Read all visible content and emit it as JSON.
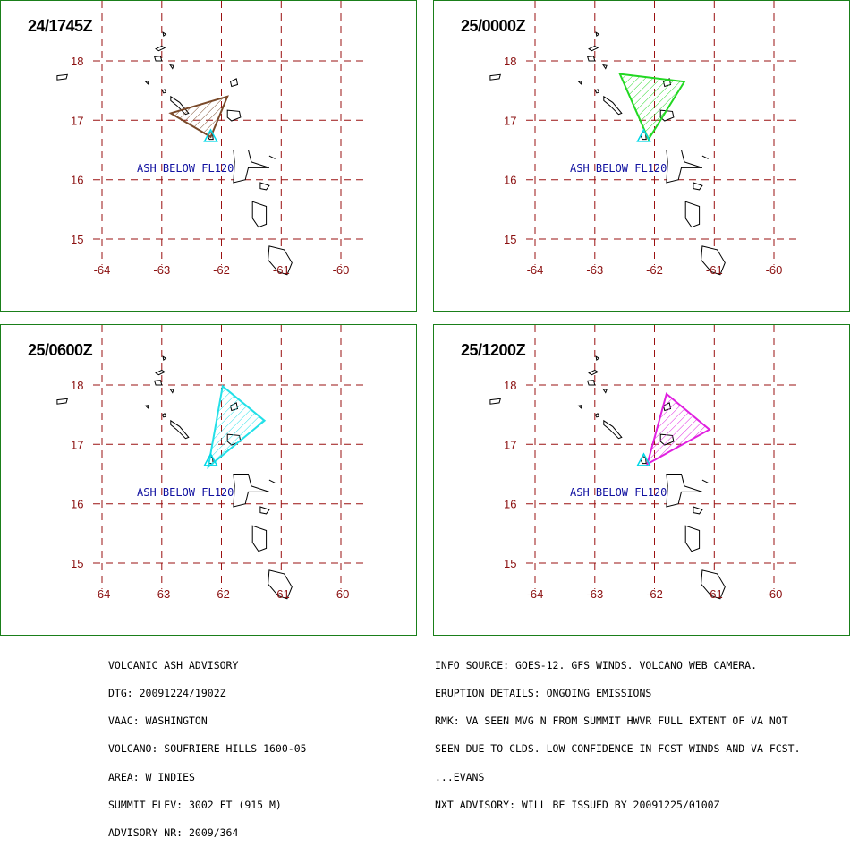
{
  "panels": [
    {
      "time": "24/1745Z",
      "color": "#7a4a2a",
      "poly": [
        [
          -62.85,
          17.12
        ],
        [
          -61.9,
          17.4
        ],
        [
          -62.18,
          16.72
        ]
      ]
    },
    {
      "time": "25/0000Z",
      "color": "#22d822",
      "poly": [
        [
          -62.58,
          17.78
        ],
        [
          -61.5,
          17.65
        ],
        [
          -62.1,
          16.68
        ]
      ]
    },
    {
      "time": "25/0600Z",
      "color": "#22e0e8",
      "poly": [
        [
          -61.98,
          17.98
        ],
        [
          -61.28,
          17.4
        ],
        [
          -62.22,
          16.62
        ]
      ]
    },
    {
      "time": "25/1200Z",
      "color": "#e020e0",
      "poly": [
        [
          -61.8,
          17.85
        ],
        [
          -61.08,
          17.25
        ],
        [
          -62.12,
          16.67
        ]
      ]
    }
  ],
  "map": {
    "lat_labels": [
      "18",
      "17",
      "16",
      "15"
    ],
    "lon_labels": [
      "-64",
      "-63",
      "-62",
      "-61",
      "-60"
    ],
    "lat_values": [
      18,
      17,
      16,
      15
    ],
    "lon_values": [
      -64,
      -63,
      -62,
      -61,
      -60
    ],
    "annotation": "ASH BELOW FL120",
    "volcano": {
      "lon": -62.18,
      "lat": 16.72
    },
    "grid_color": "#9a1010",
    "label_color": "#8b1010",
    "annotation_color": "#1010a0"
  },
  "advisory_left": [
    "VOLCANIC ASH ADVISORY",
    "DTG: 20091224/1902Z",
    "VAAC: WASHINGTON",
    "VOLCANO: SOUFRIERE HILLS 1600-05",
    "AREA: W_INDIES",
    "SUMMIT ELEV: 3002 FT (915 M)",
    "ADVISORY NR: 2009/364"
  ],
  "advisory_right": [
    "INFO SOURCE: GOES-12. GFS WINDS. VOLCANO WEB CAMERA.",
    "ERUPTION DETAILS: ONGOING EMISSIONS",
    "RMK: VA SEEN MVG N FROM SUMMIT HWVR FULL EXTENT OF VA NOT",
    "SEEN DUE TO CLDS. LOW CONFIDENCE IN FCST WINDS AND VA FCST.",
    "...EVANS",
    "NXT ADVISORY: WILL BE ISSUED BY 20091225/0100Z"
  ]
}
